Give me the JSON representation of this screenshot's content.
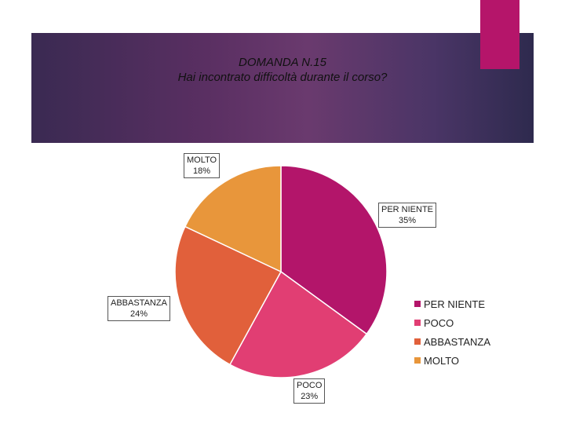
{
  "title": {
    "line1": "DOMANDA N.15",
    "line2": "Hai incontrato difficoltà durante il corso?"
  },
  "chart_data": {
    "type": "pie",
    "categories": [
      "PER NIENTE",
      "POCO",
      "ABBASTANZA",
      "MOLTO"
    ],
    "values": [
      35,
      23,
      24,
      18
    ],
    "value_labels": [
      "35%",
      "23%",
      "24%",
      "18%"
    ],
    "colors": [
      "#b3156a",
      "#e13e73",
      "#e1603b",
      "#e8963b"
    ],
    "legend_position": "right",
    "title": "DOMANDA N.15 Hai incontrato difficoltà durante il corso?"
  },
  "colors": {
    "banner_accent": "#b5156a"
  }
}
